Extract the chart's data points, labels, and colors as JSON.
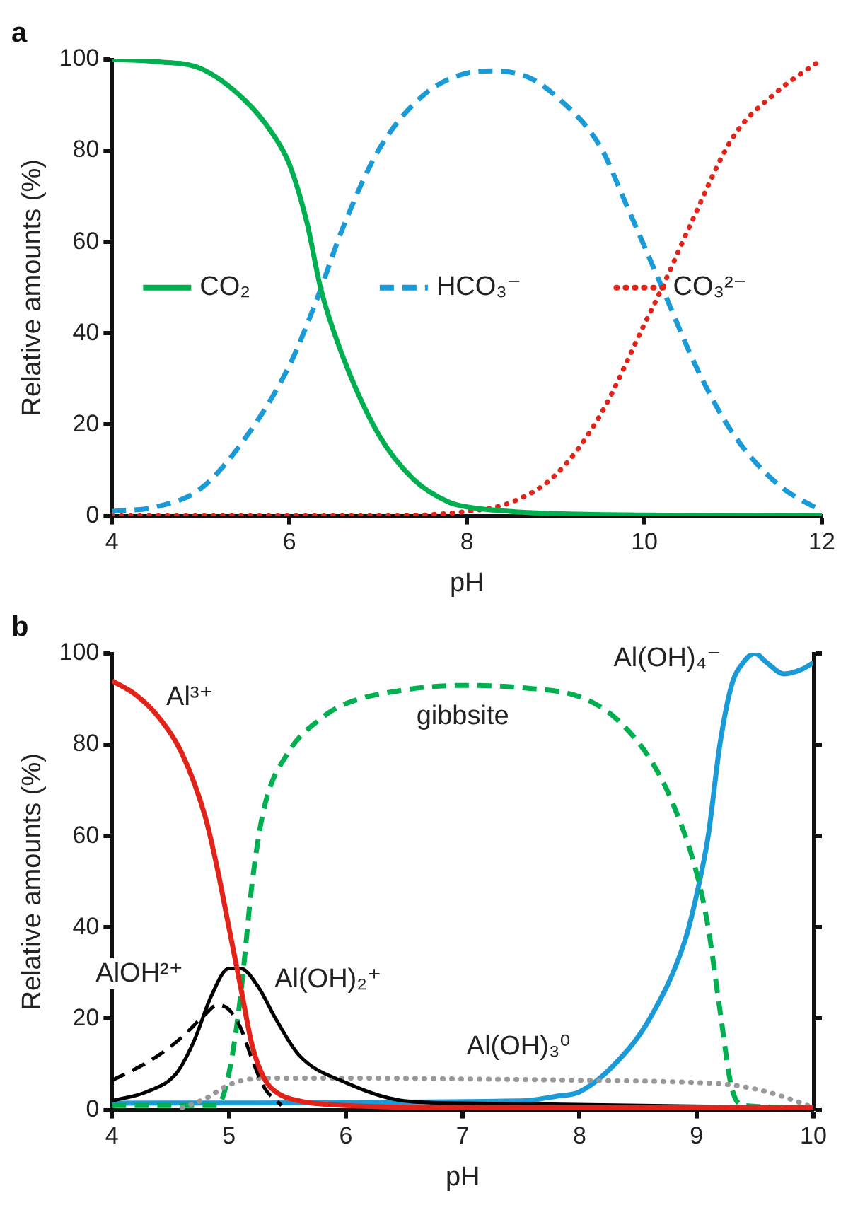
{
  "chart_data": [
    {
      "type": "line",
      "title": "a",
      "xlabel": "pH",
      "ylabel": "Relative amounts (%)",
      "xlim": [
        4,
        12
      ],
      "xticks": [
        4,
        6,
        8,
        10,
        12
      ],
      "ylim": [
        0,
        100
      ],
      "yticks": [
        0,
        20,
        40,
        60,
        80,
        100
      ],
      "grid": false,
      "legend": "center",
      "marker": "none",
      "series": [
        {
          "name": "CO₂",
          "color": "#00b050",
          "line_style": "solid",
          "x": [
            4,
            4.5,
            5,
            5.5,
            5.8,
            6,
            6.2,
            6.35,
            6.6,
            7,
            7.4,
            7.8,
            8,
            8.5,
            9,
            10,
            12
          ],
          "values": [
            100,
            99.5,
            98,
            91,
            84,
            77,
            64,
            50,
            35,
            18,
            8,
            3,
            2,
            1,
            0.5,
            0.2,
            0
          ]
        },
        {
          "name": "HCO₃⁻",
          "color": "#1a9bd7",
          "line_style": "dashed",
          "x": [
            4,
            4.5,
            5,
            5.5,
            6,
            6.3,
            6.6,
            7,
            7.5,
            8,
            8.3,
            8.7,
            9,
            9.5,
            9.8,
            10.2,
            10.6,
            11,
            11.5,
            12
          ],
          "values": [
            1,
            2,
            6,
            17,
            33,
            47,
            63,
            80,
            92,
            97,
            97.5,
            96,
            92,
            81,
            68,
            50,
            32,
            18,
            7,
            1
          ]
        },
        {
          "name": "CO₃²⁻",
          "color": "#e2231a",
          "line_style": "dotted",
          "x": [
            4,
            7,
            8,
            8.5,
            9,
            9.5,
            10,
            10.2,
            10.5,
            11,
            11.5,
            12
          ],
          "values": [
            0,
            0,
            1,
            3,
            9,
            22,
            42,
            50,
            63,
            83,
            93,
            100
          ]
        }
      ]
    },
    {
      "type": "line",
      "title": "b",
      "xlabel": "pH",
      "ylabel": "Relative amounts (%)",
      "xlim": [
        4,
        10
      ],
      "xticks": [
        4,
        5,
        6,
        7,
        8,
        9,
        10
      ],
      "ylim": [
        0,
        100
      ],
      "yticks": [
        0,
        20,
        40,
        60,
        80,
        100
      ],
      "grid": false,
      "marker": "none",
      "series": [
        {
          "name": "Al³⁺",
          "color": "#e2231a",
          "line_style": "solid",
          "x": [
            4,
            4.2,
            4.4,
            4.6,
            4.8,
            4.9,
            5,
            5.1,
            5.2,
            5.3,
            5.4,
            5.6,
            6,
            7,
            10
          ],
          "values": [
            94,
            91,
            86,
            78,
            64,
            53,
            40,
            27,
            14,
            7,
            4,
            2,
            1,
            0.5,
            0.5
          ]
        },
        {
          "name": "AlOH²⁺",
          "color": "#000000",
          "line_style": "dashed",
          "x": [
            4,
            4.2,
            4.4,
            4.6,
            4.8,
            4.9,
            5,
            5.1,
            5.2,
            5.3,
            5.45
          ],
          "values": [
            6.5,
            9,
            12,
            16,
            21,
            23,
            22,
            18,
            11,
            5,
            1
          ]
        },
        {
          "name": "Al(OH)₂⁺",
          "color": "#000000",
          "line_style": "solid",
          "x": [
            4,
            4.3,
            4.55,
            4.7,
            4.85,
            5,
            5.1,
            5.25,
            5.4,
            5.6,
            6,
            6.5,
            7,
            10
          ],
          "values": [
            2,
            4,
            8,
            15,
            25,
            31,
            31,
            27,
            20,
            12,
            6,
            2,
            1.5,
            0.5
          ]
        },
        {
          "name": "Al(OH)₃⁰",
          "color": "#999999",
          "line_style": "dotted",
          "x": [
            4.6,
            4.8,
            5,
            5.3,
            6,
            7,
            8,
            9,
            9.3,
            9.6,
            9.9,
            10
          ],
          "values": [
            0.5,
            2.5,
            5.5,
            7,
            7,
            6.8,
            6.5,
            6,
            5.5,
            4,
            1.5,
            0.5
          ]
        },
        {
          "name": "gibbsite",
          "color": "#00b050",
          "line_style": "dashed",
          "x": [
            4,
            4.9,
            5,
            5.1,
            5.2,
            5.3,
            5.5,
            5.8,
            6,
            6.5,
            7,
            7.5,
            8,
            8.3,
            8.6,
            8.8,
            9,
            9.1,
            9.2,
            9.3,
            9.4,
            10
          ],
          "values": [
            1,
            1,
            8,
            25,
            50,
            66,
            78,
            86,
            89,
            92,
            93,
            92.5,
            90.5,
            86,
            77,
            67,
            52,
            40,
            22,
            5,
            1,
            0.5
          ]
        },
        {
          "name": "Al(OH)₄⁻",
          "color": "#1a9bd7",
          "line_style": "solid",
          "x": [
            4,
            7.5,
            7.8,
            8,
            8.3,
            8.6,
            8.9,
            9,
            9.1,
            9.2,
            9.3,
            9.4,
            9.5,
            9.6,
            9.75,
            9.9,
            10
          ],
          "values": [
            1.5,
            2,
            3,
            4,
            10,
            20,
            37,
            47,
            60,
            80,
            93,
            98,
            100,
            98,
            95.5,
            96.5,
            98
          ]
        }
      ]
    }
  ]
}
